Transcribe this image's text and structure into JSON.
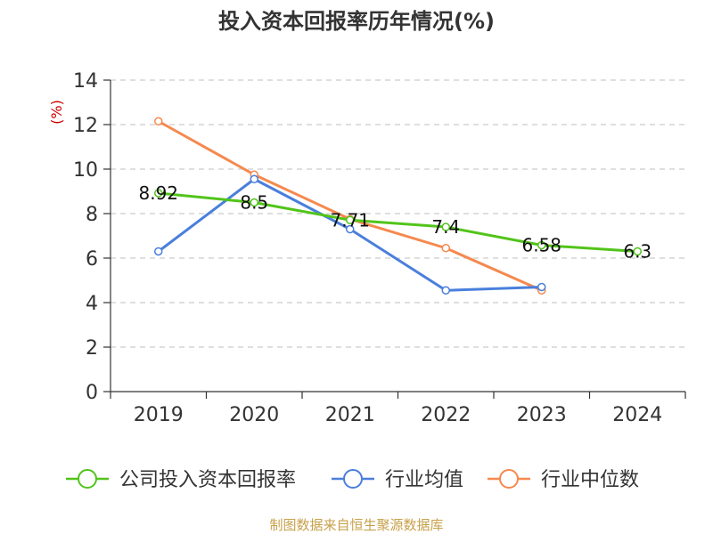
{
  "chart_data": {
    "type": "line",
    "title": "投入资本回报率历年情况(%)",
    "ylabel": "(%)",
    "categories": [
      "2019",
      "2020",
      "2021",
      "2022",
      "2023",
      "2024"
    ],
    "ylim": [
      0,
      14
    ],
    "yticks": [
      0,
      2,
      4,
      6,
      8,
      10,
      12,
      14
    ],
    "grid": true,
    "legend_position": "bottom",
    "series": [
      {
        "name": "公司投入资本回报率",
        "color": "#52c41a",
        "values": [
          8.92,
          8.5,
          7.71,
          7.4,
          6.58,
          6.3
        ],
        "labels": [
          "8.92",
          "8.5",
          "7.71",
          "7.4",
          "6.58",
          "6.3"
        ]
      },
      {
        "name": "行业均值",
        "color": "#4a7fdc",
        "values": [
          6.3,
          9.55,
          7.3,
          4.55,
          4.7,
          null
        ]
      },
      {
        "name": "行业中位数",
        "color": "#f5894e",
        "values": [
          12.15,
          9.75,
          7.75,
          6.45,
          4.55,
          null
        ]
      }
    ]
  },
  "source": "制图数据来自恒生聚源数据库"
}
